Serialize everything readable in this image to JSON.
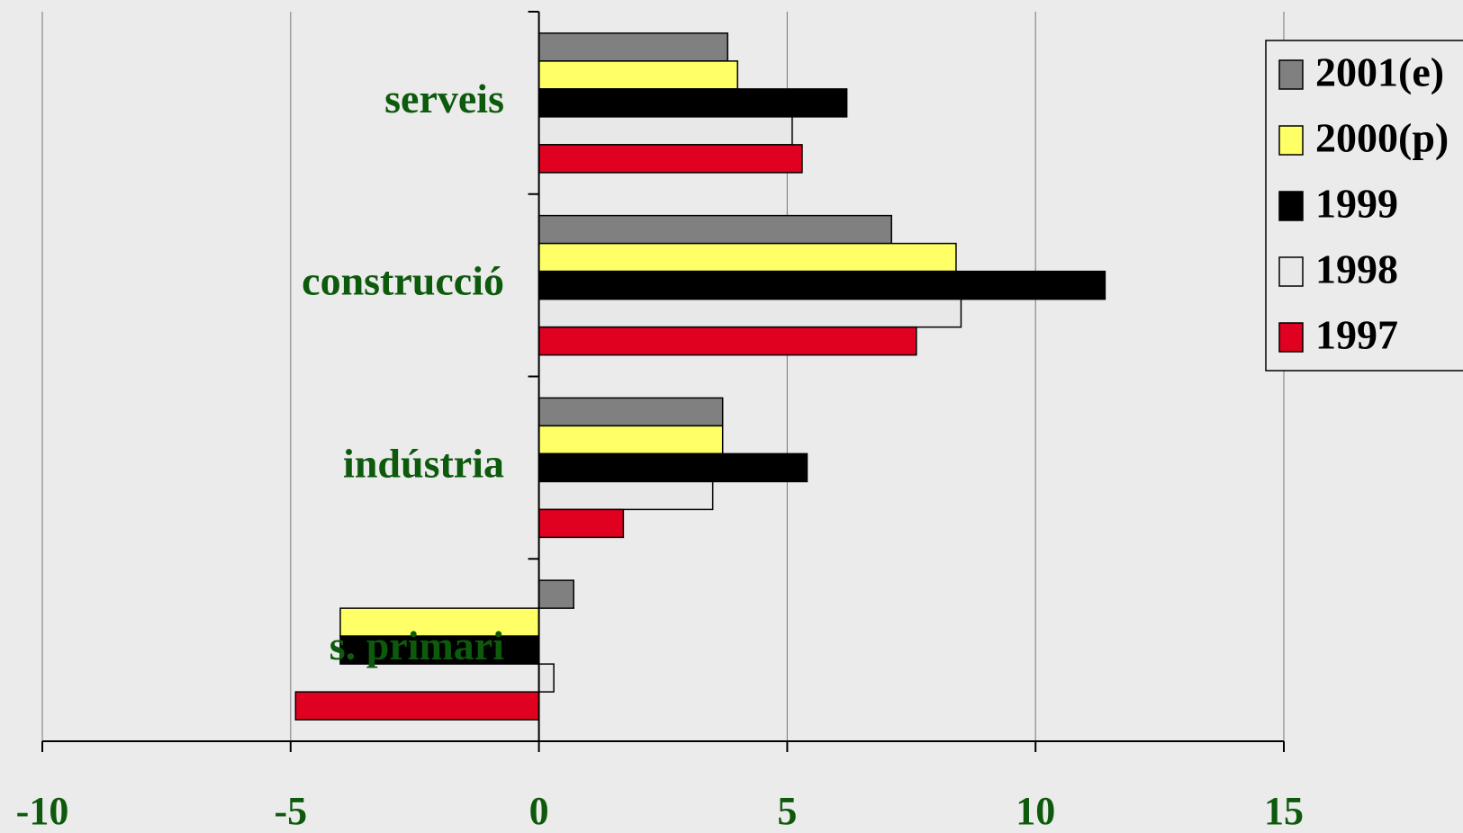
{
  "chart_data": {
    "type": "barh",
    "categories": [
      "serveis",
      "construcció",
      "indústria",
      "s. primari"
    ],
    "series": [
      {
        "name": "2001(e)",
        "color": "#808080",
        "values": [
          3.8,
          7.1,
          3.7,
          0.7
        ]
      },
      {
        "name": "2000(p)",
        "color": "#ffff66",
        "values": [
          4.0,
          8.4,
          3.7,
          -4.0
        ]
      },
      {
        "name": "1999",
        "color": "#000000",
        "values": [
          6.2,
          11.4,
          5.4,
          -4.0
        ]
      },
      {
        "name": "1998",
        "color": "#e8e8e8",
        "values": [
          5.1,
          8.5,
          3.5,
          0.3
        ]
      },
      {
        "name": "1997",
        "color": "#e00020",
        "values": [
          5.3,
          7.6,
          1.7,
          -4.9
        ]
      }
    ],
    "xlim": [
      -10,
      15
    ],
    "xticks": [
      -10,
      -5,
      0,
      5,
      10,
      15
    ],
    "grid": true,
    "legend": "upper right"
  }
}
